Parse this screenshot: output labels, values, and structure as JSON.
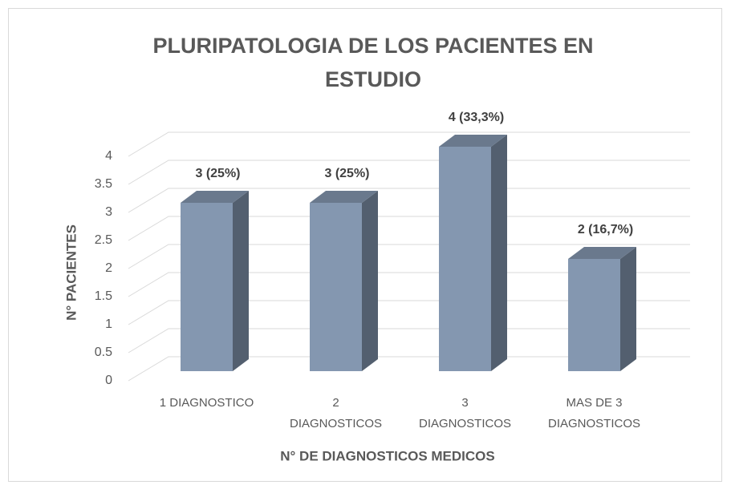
{
  "chart_data": {
    "type": "bar3d",
    "title": "PLURIPATOLOGIA DE LOS PACIENTES EN\nESTUDIO",
    "x_label": "N° DE DIAGNOSTICOS MEDICOS",
    "y_label": "N° PACIENTES",
    "categories": [
      "1 DIAGNOSTICO",
      "2\nDIAGNOSTICOS",
      "3\nDIAGNOSTICOS",
      "MAS DE 3\nDIAGNOSTICOS"
    ],
    "values": [
      3,
      3,
      4,
      2
    ],
    "value_labels": [
      "3 (25%)",
      "3 (25%)",
      "4 (33,3%)",
      "2 (16,7%)"
    ],
    "color": "#8497b0",
    "ylim": [
      0,
      4
    ],
    "yticks": [
      0,
      0.5,
      1,
      1.5,
      2,
      2.5,
      3,
      3.5,
      4
    ],
    "grid": true
  }
}
